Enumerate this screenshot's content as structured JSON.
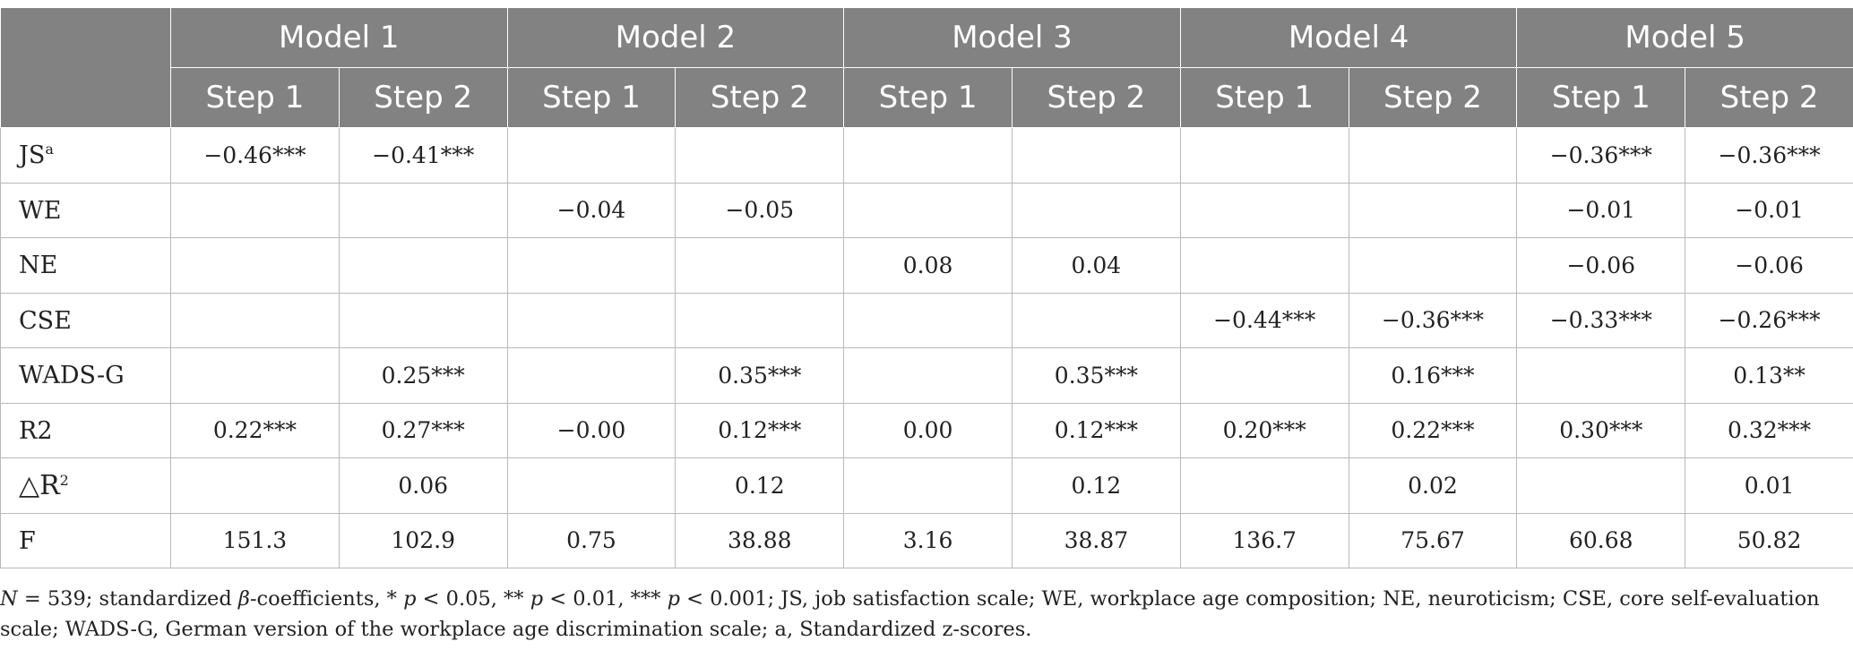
{
  "header": {
    "models": [
      "Model 1",
      "Model 2",
      "Model 3",
      "Model 4",
      "Model 5"
    ],
    "step1": "Step 1",
    "step2": "Step 2"
  },
  "rows": [
    {
      "label": "JS",
      "label_sup": "a",
      "values": [
        "−0.46***",
        "−0.41***",
        "",
        "",
        "",
        "",
        "",
        "",
        "−0.36***",
        "−0.36***"
      ]
    },
    {
      "label": "WE",
      "label_sup": "",
      "values": [
        "",
        "",
        "−0.04",
        "−0.05",
        "",
        "",
        "",
        "",
        "−0.01",
        "−0.01"
      ]
    },
    {
      "label": "NE",
      "label_sup": "",
      "values": [
        "",
        "",
        "",
        "",
        "0.08",
        "0.04",
        "",
        "",
        "−0.06",
        "−0.06"
      ]
    },
    {
      "label": "CSE",
      "label_sup": "",
      "values": [
        "",
        "",
        "",
        "",
        "",
        "",
        "−0.44***",
        "−0.36***",
        "−0.33***",
        "−0.26***"
      ]
    },
    {
      "label": "WADS-G",
      "label_sup": "",
      "values": [
        "",
        "0.25***",
        "",
        "0.35***",
        "",
        "0.35***",
        "",
        "0.16***",
        "",
        "0.13**"
      ]
    },
    {
      "label": "R2",
      "label_sup": "",
      "values": [
        "0.22***",
        "0.27***",
        "−0.00",
        "0.12***",
        "0.00",
        "0.12***",
        "0.20***",
        "0.22***",
        "0.30***",
        "0.32***"
      ]
    },
    {
      "label": "△R",
      "label_sup": "2",
      "values": [
        "",
        "0.06",
        "",
        "0.12",
        "",
        "0.12",
        "",
        "0.02",
        "",
        "0.01"
      ]
    },
    {
      "label": "F",
      "label_sup": "",
      "values": [
        "151.3",
        "102.9",
        "0.75",
        "38.88",
        "3.16",
        "38.87",
        "136.7",
        "75.67",
        "60.68",
        "50.82"
      ]
    }
  ],
  "note": {
    "n_symbol": "N",
    "n_value": " = 539; standardized ",
    "beta": "β",
    "p1_pre": "-coefficients, * ",
    "p": "p",
    "p1": " < 0.05, ** ",
    "p2": " < 0.01, *** ",
    "p3_rest": " < 0.001; JS, job satisfaction scale; WE, workplace age composition; NE, neuroticism; CSE, core self-evaluation scale; WADS-G, German version of the workplace age discrimination scale; a, Standardized z-scores."
  }
}
